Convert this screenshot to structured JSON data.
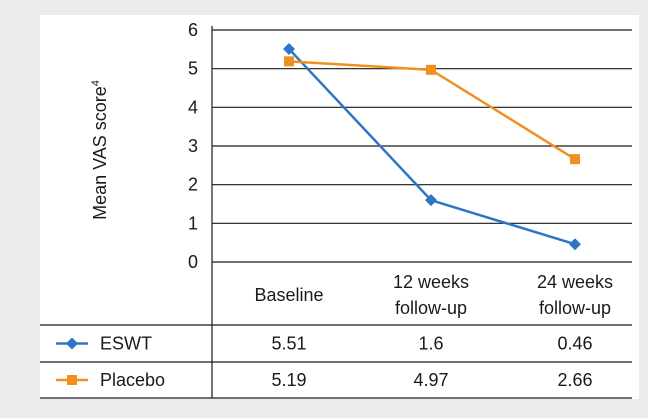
{
  "chart_data": {
    "type": "line",
    "title": "",
    "ylabel": "Mean VAS score",
    "ylabel_superscript": "4",
    "ylim": [
      0,
      6
    ],
    "yticks": [
      0,
      1,
      2,
      3,
      4,
      5,
      6
    ],
    "grid": true,
    "categories": [
      [
        "Baseline"
      ],
      [
        "12 weeks",
        "follow-up"
      ],
      [
        "24 weeks",
        "follow-up"
      ]
    ],
    "series": [
      {
        "name": "ESWT",
        "values": [
          5.51,
          1.6,
          0.46
        ],
        "labels": [
          "5.51",
          "1.6",
          "0.46"
        ],
        "color": "#2e75c4",
        "marker": "diamond"
      },
      {
        "name": "Placebo",
        "values": [
          5.19,
          4.97,
          2.66
        ],
        "labels": [
          "5.19",
          "4.97",
          "2.66"
        ],
        "color": "#f0901e",
        "marker": "square"
      }
    ],
    "legend": "data-table"
  }
}
